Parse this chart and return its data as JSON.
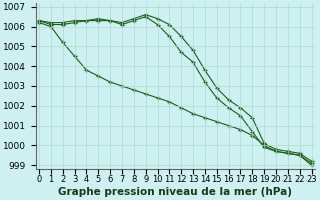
{
  "x": [
    0,
    1,
    2,
    3,
    4,
    5,
    6,
    7,
    8,
    9,
    10,
    11,
    12,
    13,
    14,
    15,
    16,
    17,
    18,
    19,
    20,
    21,
    22,
    23
  ],
  "line_max": [
    1006.3,
    1006.2,
    1006.2,
    1006.3,
    1006.3,
    1006.4,
    1006.3,
    1006.2,
    1006.4,
    1006.6,
    1006.4,
    1006.1,
    1005.5,
    1004.8,
    1003.8,
    1002.9,
    1002.3,
    1001.9,
    1001.4,
    1000.1,
    999.8,
    999.7,
    999.6,
    999.2
  ],
  "line_mid": [
    1006.3,
    1006.1,
    1006.1,
    1006.2,
    1006.3,
    1006.3,
    1006.3,
    1006.1,
    1006.3,
    1006.5,
    1006.1,
    1005.5,
    1004.7,
    1004.2,
    1003.2,
    1002.4,
    1001.9,
    1001.5,
    1000.7,
    999.9,
    999.7,
    999.6,
    999.5,
    999.1
  ],
  "line_steep": [
    1006.2,
    1006.0,
    1005.2,
    1004.5,
    1003.8,
    1003.5,
    1003.2,
    1003.0,
    1002.8,
    1002.6,
    1002.4,
    1002.2,
    1001.9,
    1001.6,
    1001.4,
    1001.2,
    1001.0,
    1000.8,
    1000.5,
    1000.0,
    999.7,
    999.6,
    999.5,
    999.0
  ],
  "bg_color": "#cef0f0",
  "grid_color": "#aaddcc",
  "line_color": "#1a5e1a",
  "ylim": [
    998.8,
    1007.2
  ],
  "yticks": [
    999,
    1000,
    1001,
    1002,
    1003,
    1004,
    1005,
    1006,
    1007
  ],
  "xlabel": "Graphe pression niveau de la mer (hPa)",
  "tick_fontsize": 6.5,
  "xlabel_fontsize": 7.5
}
